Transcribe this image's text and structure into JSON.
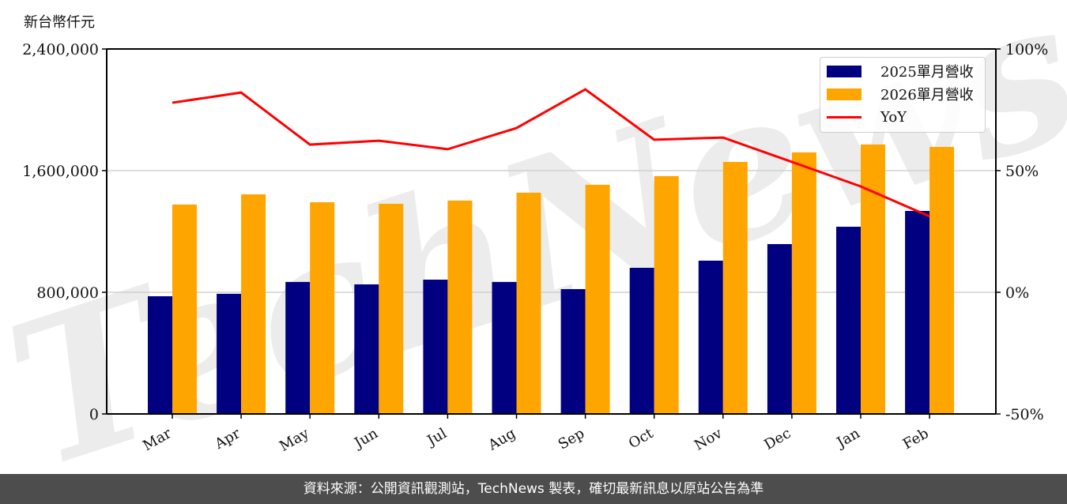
{
  "chart_data": {
    "type": "bar",
    "title": "",
    "ylabel": "新台幣仟元",
    "xlabel": "",
    "categories": [
      "Mar",
      "Apr",
      "May",
      "Jun",
      "Jul",
      "Aug",
      "Sep",
      "Oct",
      "Nov",
      "Dec",
      "Jan",
      "Feb"
    ],
    "series": [
      {
        "name": "2025單月營收",
        "type": "bar",
        "axis": "left",
        "color": "#000080",
        "values": [
          774000,
          790000,
          868000,
          852000,
          883000,
          868000,
          821000,
          961000,
          1008000,
          1117000,
          1231000,
          1335000
        ]
      },
      {
        "name": "2026單月營收",
        "type": "bar",
        "axis": "left",
        "color": "#FFA500",
        "values": [
          1377000,
          1444000,
          1392000,
          1382000,
          1403000,
          1455000,
          1507000,
          1564000,
          1657000,
          1720000,
          1772000,
          1756000
        ]
      },
      {
        "name": "YoY",
        "type": "line",
        "axis": "right",
        "color": "#FF0000",
        "values": [
          77.9,
          82.1,
          60.7,
          62.3,
          58.8,
          67.5,
          83.4,
          62.7,
          63.6,
          53.6,
          43.5,
          31.2
        ]
      }
    ],
    "ylim": [
      0,
      2400000
    ],
    "y2lim": [
      -50,
      100
    ],
    "yticks": [
      "0",
      "800,000",
      "1,600,000",
      "2,400,000"
    ],
    "y2ticks": [
      "-50%",
      "0%",
      "50%",
      "100%"
    ],
    "grid": true,
    "legend_position": "upper right",
    "watermark": "TechNews"
  },
  "header": {
    "y_axis_title": "新台幣仟元"
  },
  "legend": {
    "items": [
      {
        "label": "2025單月營收",
        "color": "#000080",
        "kind": "bar"
      },
      {
        "label": "2026單月營收",
        "color": "#FFA500",
        "kind": "bar"
      },
      {
        "label": "YoY",
        "color": "#FF0000",
        "kind": "line"
      }
    ]
  },
  "footer": {
    "source_text": "資料來源：公開資訊觀測站，TechNews 製表，確切最新訊息以原站公告為準"
  }
}
